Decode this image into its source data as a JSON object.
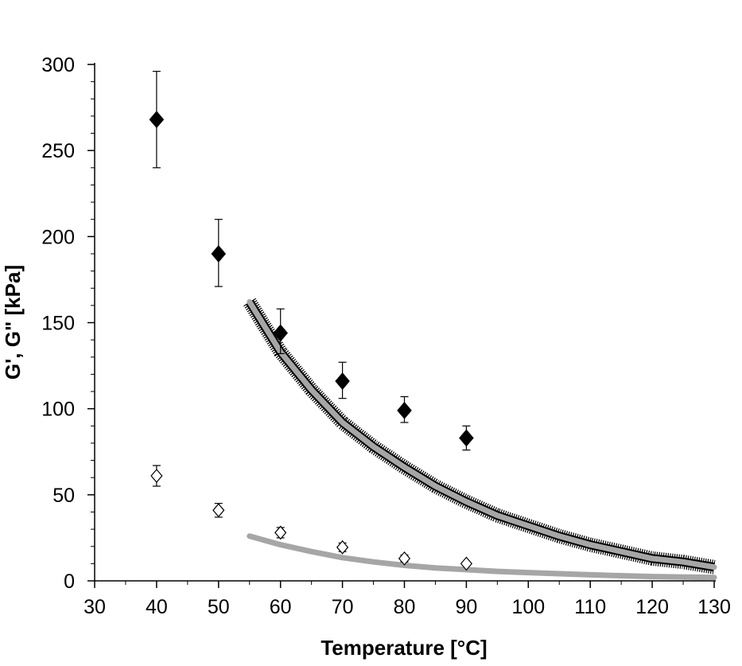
{
  "chart_data": {
    "type": "scatter",
    "title": "",
    "xlabel": "Temperature [°C]",
    "ylabel": "G', G\" [kPa]",
    "xlim": [
      30,
      130
    ],
    "ylim": [
      0,
      300
    ],
    "x_ticks": [
      "30",
      "40",
      "50",
      "60",
      "70",
      "80",
      "90",
      "100",
      "110",
      "120",
      "130"
    ],
    "y_ticks": [
      "0",
      "50",
      "100",
      "150",
      "200",
      "250",
      "300"
    ],
    "grid": false,
    "legend": "none",
    "series": [
      {
        "marker": "filled-diamond",
        "color": "#000000",
        "points": [
          {
            "x": 40,
            "y": 268,
            "err_low": 240,
            "err_high": 296
          },
          {
            "x": 50,
            "y": 190,
            "err_low": 171,
            "err_high": 210
          },
          {
            "x": 60,
            "y": 144,
            "err_low": 132,
            "err_high": 158
          },
          {
            "x": 70,
            "y": 116,
            "err_low": 106,
            "err_high": 127
          },
          {
            "x": 80,
            "y": 99,
            "err_low": 92,
            "err_high": 107
          },
          {
            "x": 90,
            "y": 83,
            "err_low": 76,
            "err_high": 90
          }
        ]
      },
      {
        "marker": "open-diamond",
        "color": "#000000",
        "points": [
          {
            "x": 40,
            "y": 61,
            "err_low": 55,
            "err_high": 67
          },
          {
            "x": 50,
            "y": 41,
            "err_low": 37,
            "err_high": 45
          },
          {
            "x": 60,
            "y": 28,
            "err_low": 25,
            "err_high": 31
          },
          {
            "x": 70,
            "y": 19.5,
            "err_low": 17,
            "err_high": 22
          },
          {
            "x": 80,
            "y": 13,
            "err_low": 11,
            "err_high": 15
          },
          {
            "x": 90,
            "y": 10,
            "err_low": 9,
            "err_high": 11
          }
        ]
      },
      {
        "type": "line",
        "style": "thick gray curve with black error band",
        "color": "#a6a6a6",
        "points": [
          {
            "x": 55,
            "y": 162
          },
          {
            "x": 60,
            "y": 133
          },
          {
            "x": 65,
            "y": 111
          },
          {
            "x": 70,
            "y": 92
          },
          {
            "x": 75,
            "y": 78
          },
          {
            "x": 80,
            "y": 66
          },
          {
            "x": 85,
            "y": 55
          },
          {
            "x": 90,
            "y": 46
          },
          {
            "x": 95,
            "y": 38
          },
          {
            "x": 100,
            "y": 32
          },
          {
            "x": 105,
            "y": 26
          },
          {
            "x": 110,
            "y": 21
          },
          {
            "x": 115,
            "y": 17
          },
          {
            "x": 120,
            "y": 13
          },
          {
            "x": 125,
            "y": 11
          },
          {
            "x": 130,
            "y": 8
          }
        ]
      },
      {
        "type": "line",
        "style": "thick gray curve",
        "color": "#a6a6a6",
        "points": [
          {
            "x": 55,
            "y": 26
          },
          {
            "x": 60,
            "y": 21
          },
          {
            "x": 65,
            "y": 17
          },
          {
            "x": 70,
            "y": 13.5
          },
          {
            "x": 75,
            "y": 11
          },
          {
            "x": 80,
            "y": 9
          },
          {
            "x": 85,
            "y": 7.5
          },
          {
            "x": 90,
            "y": 6.5
          },
          {
            "x": 95,
            "y": 5.5
          },
          {
            "x": 100,
            "y": 4.8
          },
          {
            "x": 110,
            "y": 3.5
          },
          {
            "x": 120,
            "y": 2.5
          },
          {
            "x": 130,
            "y": 2
          }
        ]
      }
    ]
  }
}
